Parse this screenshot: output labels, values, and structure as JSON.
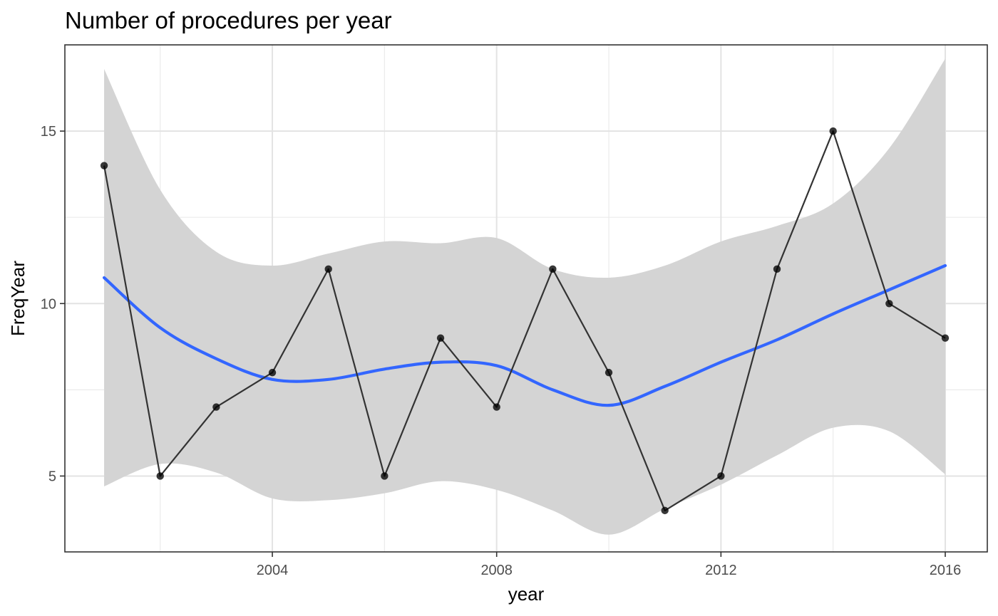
{
  "chart_data": {
    "type": "line",
    "title": "Number of procedures per year",
    "xlabel": "year",
    "ylabel": "FreqYear",
    "xlim": [
      2000.3,
      2016.75
    ],
    "ylim": [
      2.8,
      17.5
    ],
    "x_ticks": [
      2004,
      2008,
      2012,
      2016
    ],
    "y_ticks": [
      5,
      10,
      15
    ],
    "grid": true,
    "legend": "none",
    "series": [
      {
        "x": [
          2001,
          2002,
          2003,
          2004,
          2005,
          2006,
          2007,
          2008,
          2009,
          2010,
          2011,
          2012,
          2013,
          2014,
          2015,
          2016
        ],
        "values": [
          14,
          5,
          7,
          8,
          11,
          5,
          9,
          7,
          11,
          8,
          4,
          5,
          11,
          15,
          10,
          9
        ],
        "color": "#333333"
      }
    ],
    "smooth": {
      "color": "#3366ff",
      "band_color": "#d4d4d4",
      "x": [
        2001,
        2002,
        2003,
        2004,
        2005,
        2006,
        2007,
        2008,
        2009,
        2010,
        2011,
        2012,
        2013,
        2014,
        2015,
        2016
      ],
      "fit": [
        10.75,
        9.3,
        8.4,
        7.8,
        7.8,
        8.1,
        8.3,
        8.2,
        7.5,
        7.05,
        7.6,
        8.3,
        8.95,
        9.7,
        10.4,
        11.1
      ],
      "lower": [
        4.7,
        5.35,
        5.1,
        4.35,
        4.3,
        4.5,
        4.85,
        4.6,
        4.0,
        3.3,
        4.05,
        4.75,
        5.6,
        6.4,
        6.3,
        5.05
      ],
      "upper": [
        16.8,
        13.3,
        11.5,
        11.1,
        11.45,
        11.8,
        11.75,
        11.9,
        11.0,
        10.75,
        11.1,
        11.8,
        12.25,
        12.9,
        14.5,
        17.1
      ]
    }
  }
}
